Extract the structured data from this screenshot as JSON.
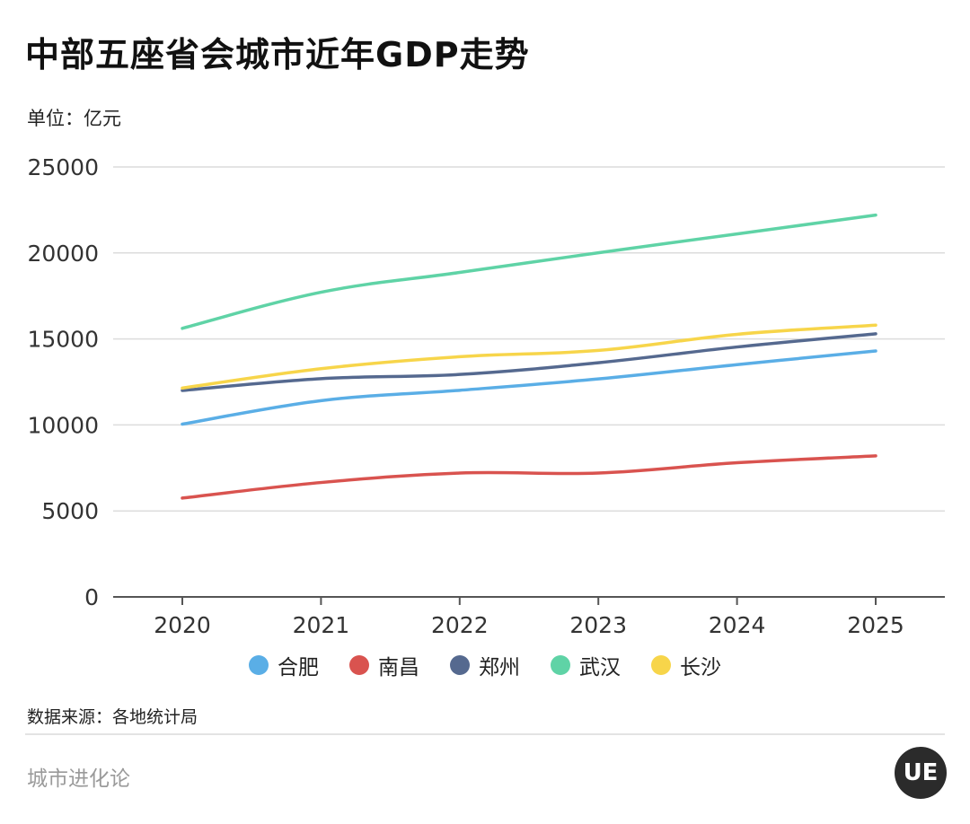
{
  "title": "中部五座省会城市近年GDP走势",
  "unit_label": "单位：亿元",
  "source": "数据来源：各地统计局",
  "brand": "城市进化论",
  "logo_text": "UE",
  "chart_data": {
    "type": "line",
    "title": "中部五座省会城市近年GDP走势",
    "ylabel": "单位：亿元",
    "xlabel": "",
    "categories": [
      "2020",
      "2021",
      "2022",
      "2023",
      "2024",
      "2025"
    ],
    "ylim": [
      0,
      25000
    ],
    "yticks": [
      0,
      5000,
      10000,
      15000,
      20000,
      25000
    ],
    "grid": true,
    "legend_position": "bottom",
    "series": [
      {
        "name": "合肥",
        "color": "#5aaee6",
        "values": [
          10046,
          11413,
          12013,
          12674,
          13507,
          14300
        ]
      },
      {
        "name": "南昌",
        "color": "#d9534f",
        "values": [
          5746,
          6651,
          7203,
          7203,
          7800,
          8200
        ]
      },
      {
        "name": "郑州",
        "color": "#55698f",
        "values": [
          12003,
          12691,
          12934,
          13617,
          14532,
          15300
        ]
      },
      {
        "name": "武汉",
        "color": "#5fd3a6",
        "values": [
          15616,
          17717,
          18866,
          20011,
          21106,
          22200
        ]
      },
      {
        "name": "长沙",
        "color": "#f7d54a",
        "values": [
          12142,
          13271,
          13966,
          14332,
          15269,
          15800
        ]
      }
    ]
  }
}
